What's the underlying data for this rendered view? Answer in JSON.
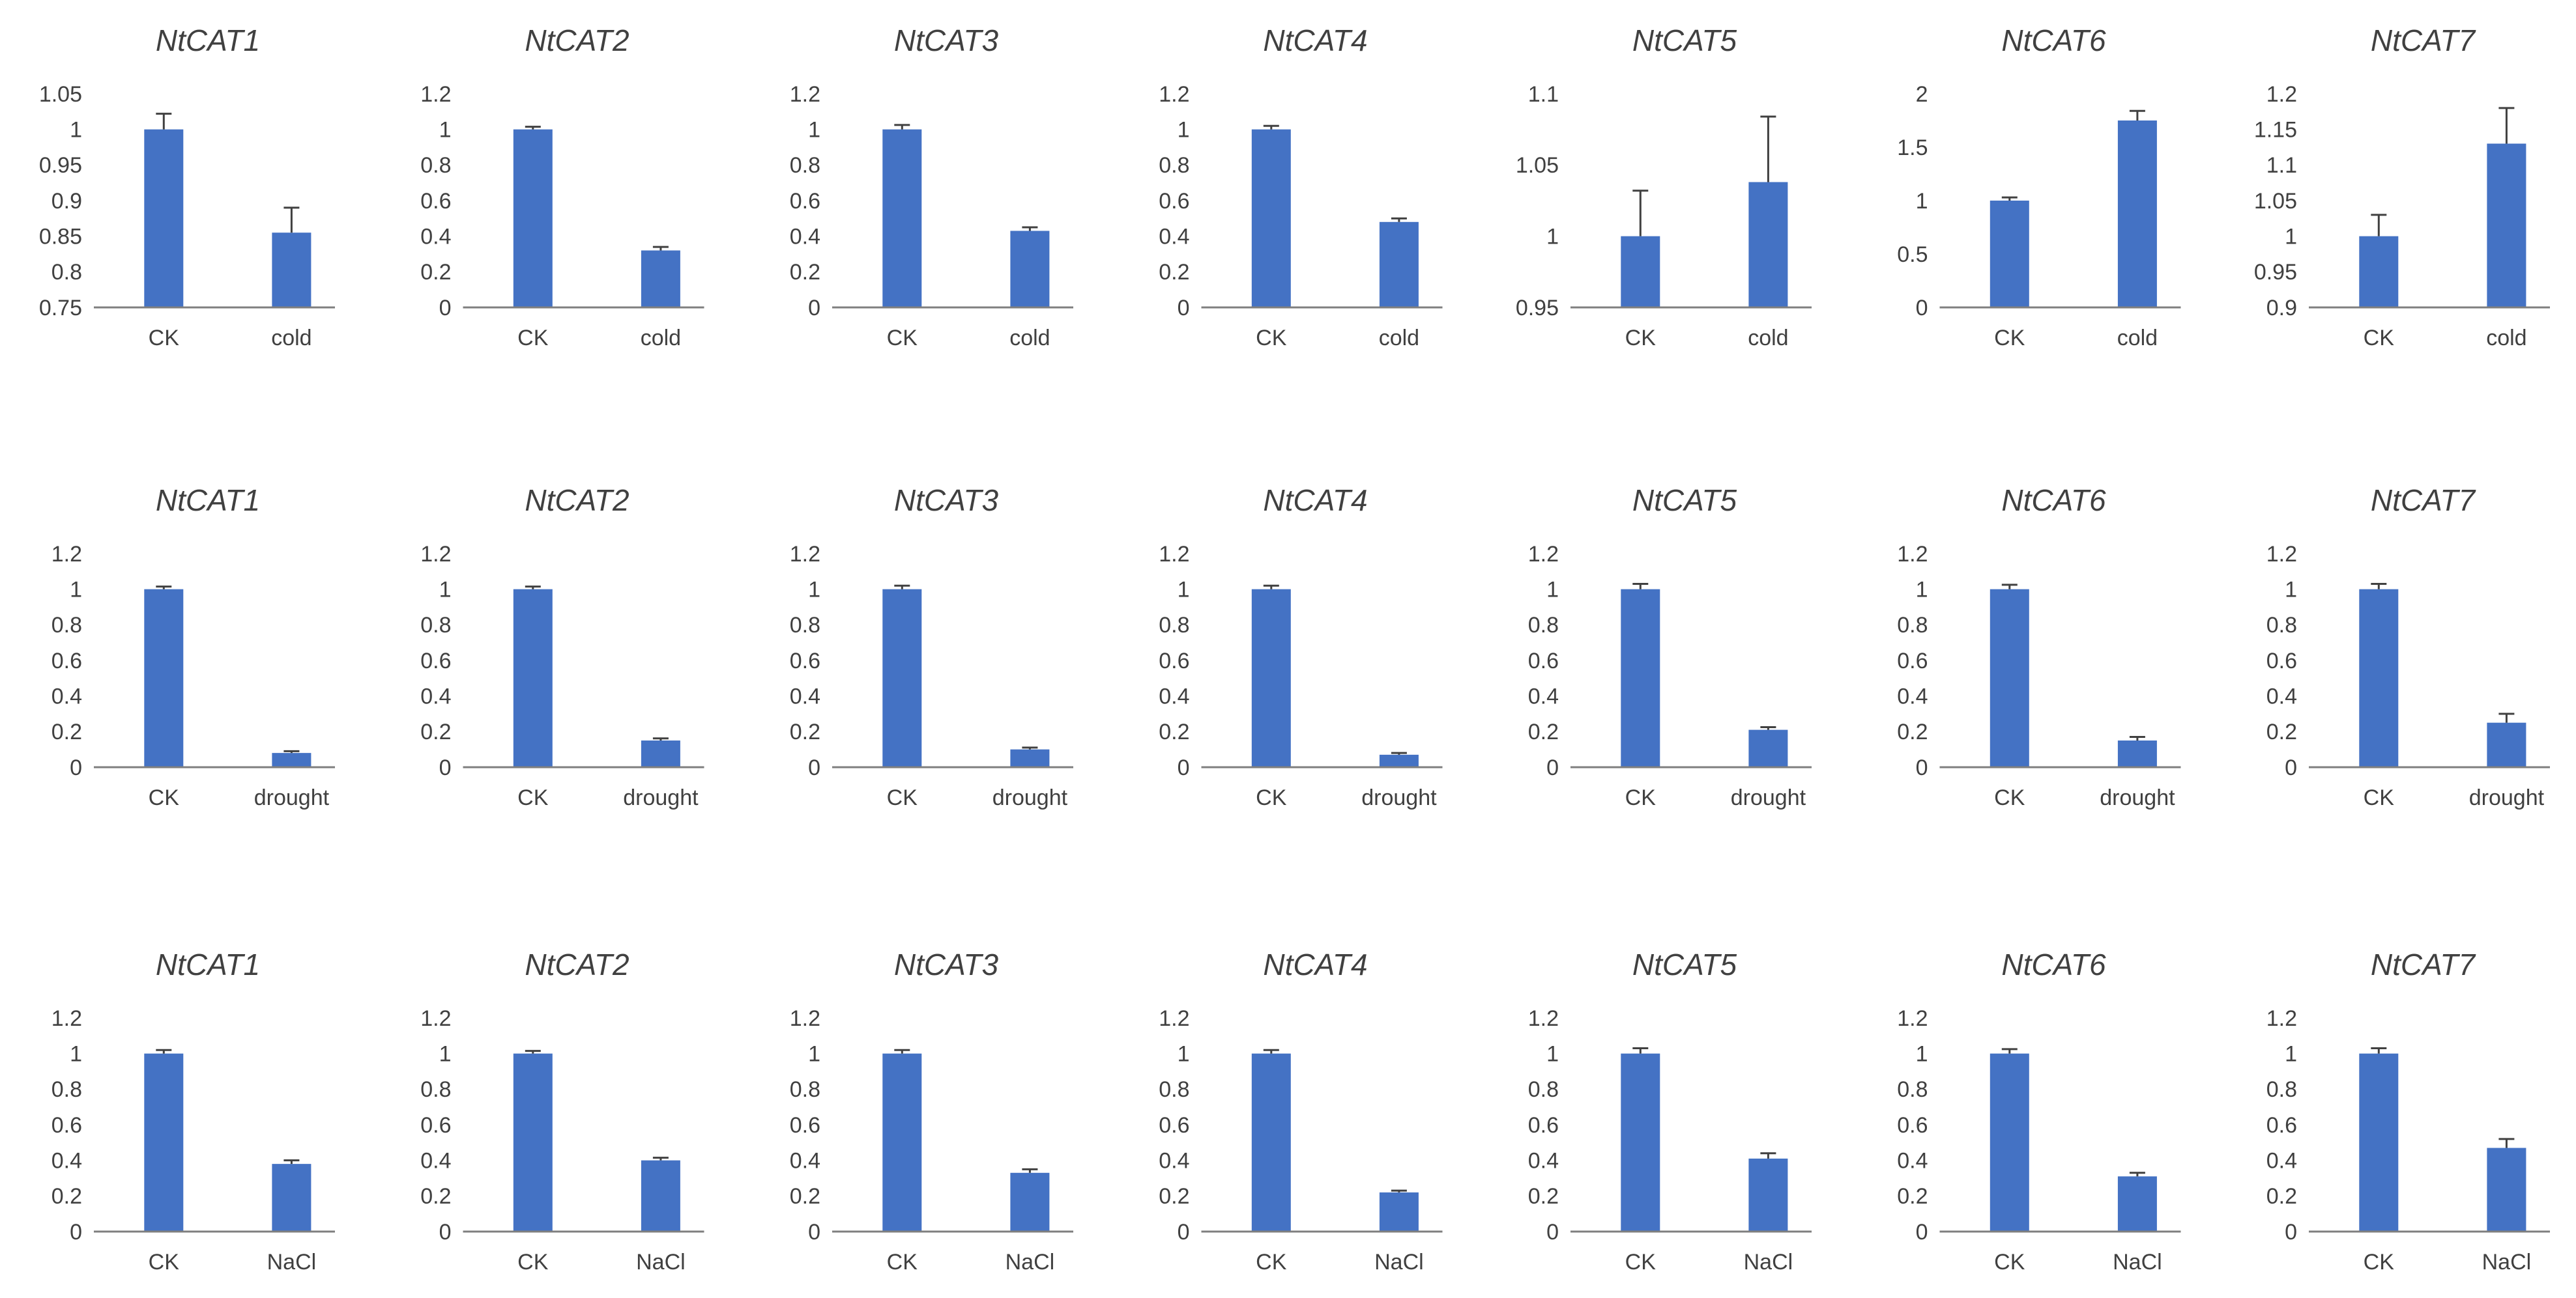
{
  "colors": {
    "bar": "#4472C4",
    "error_bar": "#404040",
    "axis": "#7F7F7F",
    "text": "#404040"
  },
  "chart_data": [
    {
      "type": "bar",
      "title": "NtCAT1",
      "categories": [
        "CK",
        "cold"
      ],
      "values": [
        1.0,
        0.855
      ],
      "errors": [
        0.022,
        0.035
      ],
      "ylim": [
        0.75,
        1.05
      ],
      "yticks": [
        "0.75",
        "0.8",
        "0.85",
        "0.9",
        "0.95",
        "1",
        "1.05"
      ]
    },
    {
      "type": "bar",
      "title": "NtCAT2",
      "categories": [
        "CK",
        "cold"
      ],
      "values": [
        1.0,
        0.32
      ],
      "errors": [
        0.015,
        0.02
      ],
      "ylim": [
        0,
        1.2
      ],
      "yticks": [
        "0",
        "0.2",
        "0.4",
        "0.6",
        "0.8",
        "1",
        "1.2"
      ]
    },
    {
      "type": "bar",
      "title": "NtCAT3",
      "categories": [
        "CK",
        "cold"
      ],
      "values": [
        1.0,
        0.43
      ],
      "errors": [
        0.025,
        0.02
      ],
      "ylim": [
        0,
        1.2
      ],
      "yticks": [
        "0",
        "0.2",
        "0.4",
        "0.6",
        "0.8",
        "1",
        "1.2"
      ]
    },
    {
      "type": "bar",
      "title": "NtCAT4",
      "categories": [
        "CK",
        "cold"
      ],
      "values": [
        1.0,
        0.48
      ],
      "errors": [
        0.02,
        0.02
      ],
      "ylim": [
        0,
        1.2
      ],
      "yticks": [
        "0",
        "0.2",
        "0.4",
        "0.6",
        "0.8",
        "1",
        "1.2"
      ]
    },
    {
      "type": "bar",
      "title": "NtCAT5",
      "categories": [
        "CK",
        "cold"
      ],
      "values": [
        1.0,
        1.038
      ],
      "errors": [
        0.032,
        0.046
      ],
      "ylim": [
        0.95,
        1.1
      ],
      "yticks": [
        "0.95",
        "1",
        "1.05",
        "1.1"
      ]
    },
    {
      "type": "bar",
      "title": "NtCAT6",
      "categories": [
        "CK",
        "cold"
      ],
      "values": [
        1.0,
        1.75
      ],
      "errors": [
        0.03,
        0.09
      ],
      "ylim": [
        0,
        2
      ],
      "yticks": [
        "0",
        "0.5",
        "1",
        "1.5",
        "2"
      ]
    },
    {
      "type": "bar",
      "title": "NtCAT7",
      "categories": [
        "CK",
        "cold"
      ],
      "values": [
        1.0,
        1.13
      ],
      "errors": [
        0.03,
        0.05
      ],
      "ylim": [
        0.9,
        1.2
      ],
      "yticks": [
        "0.9",
        "0.95",
        "1",
        "1.05",
        "1.1",
        "1.15",
        "1.2"
      ]
    },
    {
      "type": "bar",
      "title": "NtCAT1",
      "categories": [
        "CK",
        "drought"
      ],
      "values": [
        1.0,
        0.08
      ],
      "errors": [
        0.015,
        0.01
      ],
      "ylim": [
        0,
        1.2
      ],
      "yticks": [
        "0",
        "0.2",
        "0.4",
        "0.6",
        "0.8",
        "1",
        "1.2"
      ]
    },
    {
      "type": "bar",
      "title": "NtCAT2",
      "categories": [
        "CK",
        "drought"
      ],
      "values": [
        1.0,
        0.15
      ],
      "errors": [
        0.015,
        0.012
      ],
      "ylim": [
        0,
        1.2
      ],
      "yticks": [
        "0",
        "0.2",
        "0.4",
        "0.6",
        "0.8",
        "1",
        "1.2"
      ]
    },
    {
      "type": "bar",
      "title": "NtCAT3",
      "categories": [
        "CK",
        "drought"
      ],
      "values": [
        1.0,
        0.1
      ],
      "errors": [
        0.02,
        0.01
      ],
      "ylim": [
        0,
        1.2
      ],
      "yticks": [
        "0",
        "0.2",
        "0.4",
        "0.6",
        "0.8",
        "1",
        "1.2"
      ]
    },
    {
      "type": "bar",
      "title": "NtCAT4",
      "categories": [
        "CK",
        "drought"
      ],
      "values": [
        1.0,
        0.07
      ],
      "errors": [
        0.02,
        0.01
      ],
      "ylim": [
        0,
        1.2
      ],
      "yticks": [
        "0",
        "0.2",
        "0.4",
        "0.6",
        "0.8",
        "1",
        "1.2"
      ]
    },
    {
      "type": "bar",
      "title": "NtCAT5",
      "categories": [
        "CK",
        "drought"
      ],
      "values": [
        1.0,
        0.21
      ],
      "errors": [
        0.03,
        0.015
      ],
      "ylim": [
        0,
        1.2
      ],
      "yticks": [
        "0",
        "0.2",
        "0.4",
        "0.6",
        "0.8",
        "1",
        "1.2"
      ]
    },
    {
      "type": "bar",
      "title": "NtCAT6",
      "categories": [
        "CK",
        "drought"
      ],
      "values": [
        1.0,
        0.15
      ],
      "errors": [
        0.025,
        0.02
      ],
      "ylim": [
        0,
        1.2
      ],
      "yticks": [
        "0",
        "0.2",
        "0.4",
        "0.6",
        "0.8",
        "1",
        "1.2"
      ]
    },
    {
      "type": "bar",
      "title": "NtCAT7",
      "categories": [
        "CK",
        "drought"
      ],
      "values": [
        1.0,
        0.25
      ],
      "errors": [
        0.03,
        0.05
      ],
      "ylim": [
        0,
        1.2
      ],
      "yticks": [
        "0",
        "0.2",
        "0.4",
        "0.6",
        "0.8",
        "1",
        "1.2"
      ]
    },
    {
      "type": "bar",
      "title": "NtCAT1",
      "categories": [
        "CK",
        "NaCl"
      ],
      "values": [
        1.0,
        0.38
      ],
      "errors": [
        0.02,
        0.02
      ],
      "ylim": [
        0,
        1.2
      ],
      "yticks": [
        "0",
        "0.2",
        "0.4",
        "0.6",
        "0.8",
        "1",
        "1.2"
      ]
    },
    {
      "type": "bar",
      "title": "NtCAT2",
      "categories": [
        "CK",
        "NaCl"
      ],
      "values": [
        1.0,
        0.4
      ],
      "errors": [
        0.015,
        0.015
      ],
      "ylim": [
        0,
        1.2
      ],
      "yticks": [
        "0",
        "0.2",
        "0.4",
        "0.6",
        "0.8",
        "1",
        "1.2"
      ]
    },
    {
      "type": "bar",
      "title": "NtCAT3",
      "categories": [
        "CK",
        "NaCl"
      ],
      "values": [
        1.0,
        0.33
      ],
      "errors": [
        0.02,
        0.02
      ],
      "ylim": [
        0,
        1.2
      ],
      "yticks": [
        "0",
        "0.2",
        "0.4",
        "0.6",
        "0.8",
        "1",
        "1.2"
      ]
    },
    {
      "type": "bar",
      "title": "NtCAT4",
      "categories": [
        "CK",
        "NaCl"
      ],
      "values": [
        1.0,
        0.22
      ],
      "errors": [
        0.02,
        0.01
      ],
      "ylim": [
        0,
        1.2
      ],
      "yticks": [
        "0",
        "0.2",
        "0.4",
        "0.6",
        "0.8",
        "1",
        "1.2"
      ]
    },
    {
      "type": "bar",
      "title": "NtCAT5",
      "categories": [
        "CK",
        "NaCl"
      ],
      "values": [
        1.0,
        0.41
      ],
      "errors": [
        0.03,
        0.03
      ],
      "ylim": [
        0,
        1.2
      ],
      "yticks": [
        "0",
        "0.2",
        "0.4",
        "0.6",
        "0.8",
        "1",
        "1.2"
      ]
    },
    {
      "type": "bar",
      "title": "NtCAT6",
      "categories": [
        "CK",
        "NaCl"
      ],
      "values": [
        1.0,
        0.31
      ],
      "errors": [
        0.025,
        0.02
      ],
      "ylim": [
        0,
        1.2
      ],
      "yticks": [
        "0",
        "0.2",
        "0.4",
        "0.6",
        "0.8",
        "1",
        "1.2"
      ]
    },
    {
      "type": "bar",
      "title": "NtCAT7",
      "categories": [
        "CK",
        "NaCl"
      ],
      "values": [
        1.0,
        0.47
      ],
      "errors": [
        0.03,
        0.05
      ],
      "ylim": [
        0,
        1.2
      ],
      "yticks": [
        "0",
        "0.2",
        "0.4",
        "0.6",
        "0.8",
        "1",
        "1.2"
      ]
    }
  ]
}
